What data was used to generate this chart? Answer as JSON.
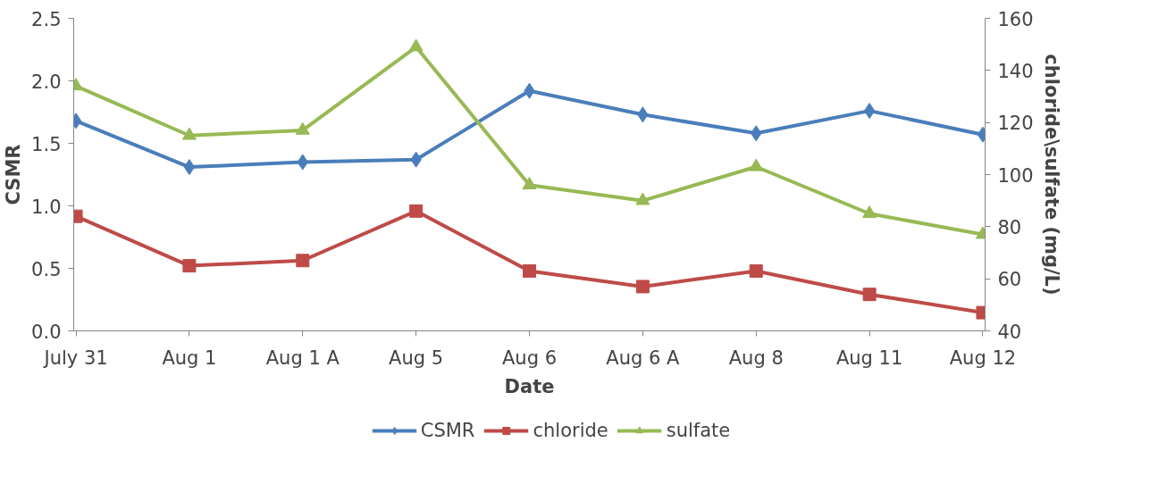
{
  "chart_data": {
    "type": "line",
    "xlabel": "Date",
    "ylabel": "CSMR",
    "y2label": "chloride\\sulfate (mg/L)",
    "categories": [
      "July 31",
      "Aug 1",
      "Aug 1 A",
      "Aug 5",
      "Aug 6",
      "Aug 6 A",
      "Aug 8",
      "Aug 11",
      "Aug 12"
    ],
    "series": [
      {
        "name": "CSMR",
        "color": "#4a7ebb",
        "marker": "diamond",
        "values": [
          1.68,
          1.31,
          1.35,
          1.37,
          1.92,
          1.73,
          1.58,
          1.76,
          1.57
        ]
      },
      {
        "name": "chloride",
        "color": "#be4b48",
        "marker": "square",
        "axis": "y2",
        "values": [
          84,
          65,
          67,
          86,
          63,
          57,
          63,
          54,
          47
        ]
      },
      {
        "name": "sulfate",
        "color": "#98b954",
        "marker": "triangle",
        "axis": "y2",
        "values": [
          134,
          115,
          117,
          149,
          96,
          90,
          103,
          85,
          77
        ]
      }
    ],
    "ylim": [
      0,
      2.5
    ],
    "yticks": [
      {
        "value": 0,
        "label": "0.0"
      },
      0.5,
      {
        "value": 1,
        "label": "1.0"
      },
      1.5,
      {
        "value": 2,
        "label": "2.0"
      },
      2.5
    ],
    "y2lim": [
      40,
      160
    ],
    "y2ticks": [
      40,
      60,
      80,
      100,
      120,
      140,
      160
    ],
    "grid": false,
    "legend": "bottom",
    "line_style": "solid"
  }
}
